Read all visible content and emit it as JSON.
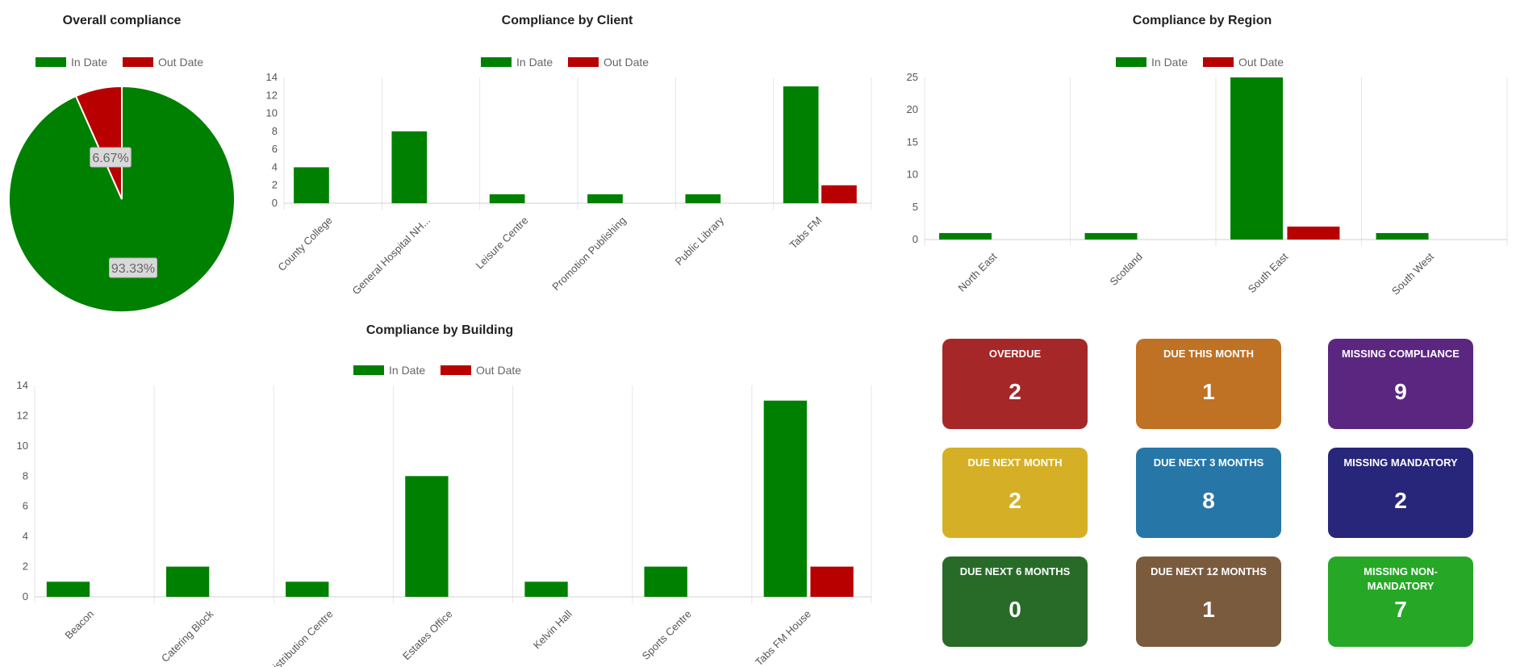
{
  "legend": {
    "in_date": "In Date",
    "out_date": "Out Date"
  },
  "colors": {
    "in_date": "#008000",
    "out_date": "#b80000"
  },
  "chart_data": [
    {
      "id": "overall",
      "type": "pie",
      "title": "Overall compliance",
      "series": [
        {
          "name": "In Date",
          "value": 93.33,
          "label": "93.33%"
        },
        {
          "name": "Out Date",
          "value": 6.67,
          "label": "6.67%"
        }
      ]
    },
    {
      "id": "client",
      "type": "bar",
      "title": "Compliance by Client",
      "categories": [
        "County College",
        "General Hospital NH...",
        "Leisure Centre",
        "Promotion Publishing",
        "Public Library",
        "Tabs FM"
      ],
      "series": [
        {
          "name": "In Date",
          "values": [
            4,
            8,
            1,
            1,
            1,
            13
          ]
        },
        {
          "name": "Out Date",
          "values": [
            0,
            0,
            0,
            0,
            0,
            2
          ]
        }
      ],
      "ylim": [
        0,
        14
      ],
      "yticks": [
        0,
        2,
        4,
        6,
        8,
        10,
        12,
        14
      ],
      "legend": "top-center",
      "grid": "vertical"
    },
    {
      "id": "region",
      "type": "bar",
      "title": "Compliance by Region",
      "categories": [
        "North East",
        "Scotland",
        "South East",
        "South West"
      ],
      "series": [
        {
          "name": "In Date",
          "values": [
            1,
            1,
            25,
            1
          ]
        },
        {
          "name": "Out Date",
          "values": [
            0,
            0,
            2,
            0
          ]
        }
      ],
      "ylim": [
        0,
        25
      ],
      "yticks": [
        0,
        5,
        10,
        15,
        20,
        25
      ],
      "legend": "top-center",
      "grid": "vertical"
    },
    {
      "id": "building",
      "type": "bar",
      "title": "Compliance by Building",
      "categories": [
        "Beacon",
        "Catering Block",
        "Distribution Centre",
        "Estates Office",
        "Kelvin Hall",
        "Sports Centre",
        "Tabs FM House"
      ],
      "series": [
        {
          "name": "In Date",
          "values": [
            1,
            2,
            1,
            8,
            1,
            2,
            13
          ]
        },
        {
          "name": "Out Date",
          "values": [
            0,
            0,
            0,
            0,
            0,
            0,
            2
          ]
        }
      ],
      "ylim": [
        0,
        14
      ],
      "yticks": [
        0,
        2,
        4,
        6,
        8,
        10,
        12,
        14
      ],
      "legend": "top-center",
      "grid": "vertical"
    }
  ],
  "tiles": [
    {
      "label": "OVERDUE",
      "value": "2",
      "color": "#a52728"
    },
    {
      "label": "DUE THIS MONTH",
      "value": "1",
      "color": "#bf7124"
    },
    {
      "label": "MISSING COMPLIANCE",
      "value": "9",
      "color": "#5b2680"
    },
    {
      "label": "DUE NEXT MONTH",
      "value": "2",
      "color": "#d5b027"
    },
    {
      "label": "DUE NEXT 3 MONTHS",
      "value": "8",
      "color": "#2776a8"
    },
    {
      "label": "MISSING MANDATORY",
      "value": "2",
      "color": "#28267a"
    },
    {
      "label": "DUE NEXT 6 MONTHS",
      "value": "0",
      "color": "#286b28"
    },
    {
      "label": "DUE NEXT 12 MONTHS",
      "value": "1",
      "color": "#7b5b3e"
    },
    {
      "label": "MISSING NON-MANDATORY",
      "value": "7",
      "color": "#26a826"
    }
  ]
}
